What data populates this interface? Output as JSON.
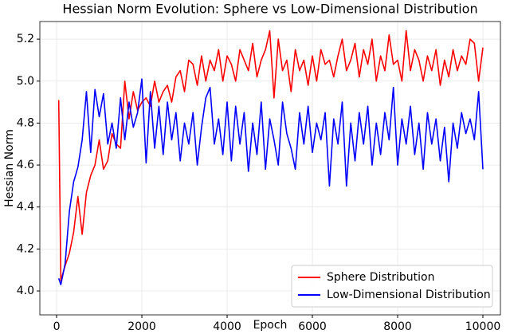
{
  "chart_data": {
    "type": "line",
    "title": "Hessian Norm Evolution: Sphere vs Low-Dimensional Distribution",
    "xlabel": "Epoch",
    "ylabel": "Hessian Norm",
    "x": [
      50,
      100,
      200,
      300,
      400,
      500,
      600,
      700,
      800,
      900,
      1000,
      1100,
      1200,
      1300,
      1400,
      1500,
      1600,
      1700,
      1800,
      1900,
      2000,
      2100,
      2200,
      2300,
      2400,
      2500,
      2600,
      2700,
      2800,
      2900,
      3000,
      3100,
      3200,
      3300,
      3400,
      3500,
      3600,
      3700,
      3800,
      3900,
      4000,
      4100,
      4200,
      4300,
      4400,
      4500,
      4600,
      4700,
      4800,
      4900,
      5000,
      5100,
      5200,
      5300,
      5400,
      5500,
      5600,
      5700,
      5800,
      5900,
      6000,
      6100,
      6200,
      6300,
      6400,
      6500,
      6600,
      6700,
      6800,
      6900,
      7000,
      7100,
      7200,
      7300,
      7400,
      7500,
      7600,
      7700,
      7800,
      7900,
      8000,
      8100,
      8200,
      8300,
      8400,
      8500,
      8600,
      8700,
      8800,
      8900,
      9000,
      9100,
      9200,
      9300,
      9400,
      9500,
      9600,
      9700,
      9800,
      9900,
      10000
    ],
    "series": [
      {
        "name": "Sphere Distribution",
        "color": "#ff0000",
        "values": [
          4.91,
          4.05,
          4.12,
          4.18,
          4.28,
          4.45,
          4.27,
          4.47,
          4.55,
          4.6,
          4.72,
          4.58,
          4.62,
          4.75,
          4.7,
          4.68,
          5.0,
          4.82,
          4.95,
          4.86,
          4.9,
          4.92,
          4.88,
          5.0,
          4.9,
          4.95,
          4.98,
          4.9,
          5.02,
          5.05,
          4.95,
          5.1,
          5.08,
          4.98,
          5.12,
          5.0,
          5.1,
          5.05,
          5.15,
          5.0,
          5.12,
          5.08,
          5.0,
          5.15,
          5.1,
          5.05,
          5.18,
          5.02,
          5.1,
          5.15,
          5.24,
          4.92,
          5.2,
          5.05,
          5.1,
          4.95,
          5.15,
          5.05,
          5.1,
          4.98,
          5.12,
          5.0,
          5.15,
          5.08,
          5.1,
          5.02,
          5.12,
          5.2,
          5.05,
          5.1,
          5.18,
          5.02,
          5.15,
          5.08,
          5.2,
          5.0,
          5.12,
          5.05,
          5.22,
          5.08,
          5.1,
          5.0,
          5.24,
          5.05,
          5.15,
          5.1,
          5.0,
          5.12,
          5.05,
          5.15,
          4.98,
          5.1,
          5.02,
          5.15,
          5.05,
          5.12,
          5.08,
          5.2,
          5.18,
          5.0,
          5.16
        ]
      },
      {
        "name": "Low-Dimensional Distribution",
        "color": "#0000ff",
        "values": [
          4.06,
          4.03,
          4.13,
          4.38,
          4.52,
          4.59,
          4.72,
          4.95,
          4.66,
          4.96,
          4.83,
          4.94,
          4.7,
          4.8,
          4.68,
          4.92,
          4.72,
          4.9,
          4.78,
          4.85,
          5.01,
          4.61,
          4.95,
          4.68,
          4.88,
          4.65,
          4.9,
          4.72,
          4.85,
          4.62,
          4.8,
          4.7,
          4.85,
          4.6,
          4.78,
          4.92,
          4.97,
          4.7,
          4.82,
          4.65,
          4.9,
          4.62,
          4.88,
          4.7,
          4.85,
          4.57,
          4.8,
          4.65,
          4.9,
          4.58,
          4.82,
          4.72,
          4.6,
          4.9,
          4.75,
          4.68,
          4.58,
          4.85,
          4.7,
          4.88,
          4.66,
          4.8,
          4.72,
          4.85,
          4.5,
          4.82,
          4.7,
          4.9,
          4.5,
          4.8,
          4.62,
          4.85,
          4.7,
          4.88,
          4.6,
          4.8,
          4.65,
          4.85,
          4.72,
          4.97,
          4.6,
          4.82,
          4.7,
          4.88,
          4.65,
          4.8,
          4.58,
          4.85,
          4.7,
          4.82,
          4.62,
          4.78,
          4.52,
          4.8,
          4.68,
          4.85,
          4.75,
          4.82,
          4.72,
          4.95,
          4.58
        ]
      }
    ],
    "xlim": [
      -393,
      10411
    ],
    "ylim": [
      3.886,
      5.284
    ],
    "xticks": [
      0,
      2000,
      4000,
      6000,
      8000,
      10000
    ],
    "yticks": [
      {
        "value": 4,
        "label": "4.0"
      },
      4.2,
      4.4,
      4.6,
      4.8,
      {
        "value": 5,
        "label": "5.0"
      },
      5.2
    ],
    "grid": true,
    "legend": "lower right"
  }
}
